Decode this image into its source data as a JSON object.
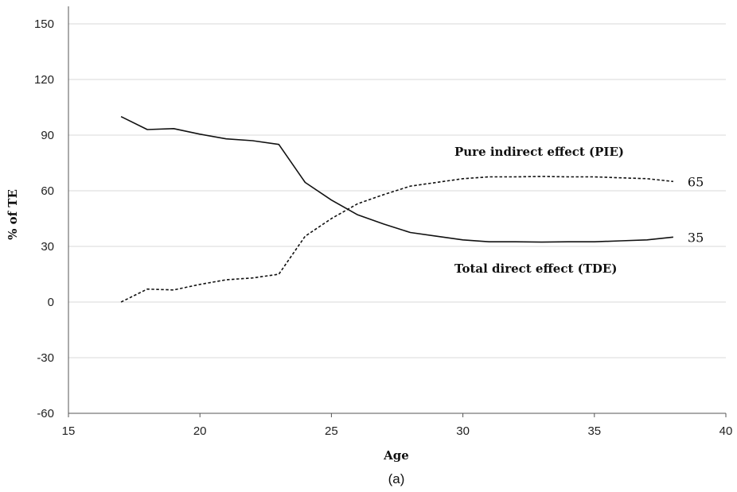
{
  "chart_data": {
    "type": "line",
    "xlabel": "Age",
    "ylabel": "% of TE",
    "xlim": [
      15,
      40
    ],
    "ylim": [
      -60,
      150
    ],
    "xticks": [
      15,
      20,
      25,
      30,
      35,
      40
    ],
    "yticks": [
      -60,
      -30,
      0,
      30,
      60,
      90,
      120,
      150
    ],
    "grid": "horizontal",
    "caption": "(a)",
    "series": [
      {
        "name": "Total direct effect (TDE)",
        "style": "solid",
        "color": "#111111",
        "end_label": "35",
        "points": [
          [
            17,
            100
          ],
          [
            18,
            93
          ],
          [
            19,
            93.5
          ],
          [
            20,
            90.5
          ],
          [
            21,
            88
          ],
          [
            22,
            87
          ],
          [
            23,
            85
          ],
          [
            24,
            64.5
          ],
          [
            25,
            55
          ],
          [
            26,
            47
          ],
          [
            27,
            42
          ],
          [
            28,
            37.5
          ],
          [
            29,
            35.5
          ],
          [
            30,
            33.5
          ],
          [
            31,
            32.5
          ],
          [
            32,
            32.5
          ],
          [
            33,
            32.3
          ],
          [
            34,
            32.5
          ],
          [
            35,
            32.5
          ],
          [
            36,
            33
          ],
          [
            37,
            33.5
          ],
          [
            38,
            35
          ]
        ]
      },
      {
        "name": "Pure indirect effect (PIE)",
        "style": "dashed",
        "color": "#111111",
        "end_label": "65",
        "points": [
          [
            17,
            0
          ],
          [
            18,
            7
          ],
          [
            19,
            6.5
          ],
          [
            20,
            9.5
          ],
          [
            21,
            12
          ],
          [
            22,
            13
          ],
          [
            23,
            15
          ],
          [
            24,
            35.5
          ],
          [
            25,
            45
          ],
          [
            26,
            53
          ],
          [
            27,
            58
          ],
          [
            28,
            62.5
          ],
          [
            29,
            64.5
          ],
          [
            30,
            66.5
          ],
          [
            31,
            67.5
          ],
          [
            32,
            67.5
          ],
          [
            33,
            67.7
          ],
          [
            34,
            67.5
          ],
          [
            35,
            67.5
          ],
          [
            36,
            67
          ],
          [
            37,
            66.5
          ],
          [
            38,
            65
          ]
        ]
      }
    ]
  }
}
